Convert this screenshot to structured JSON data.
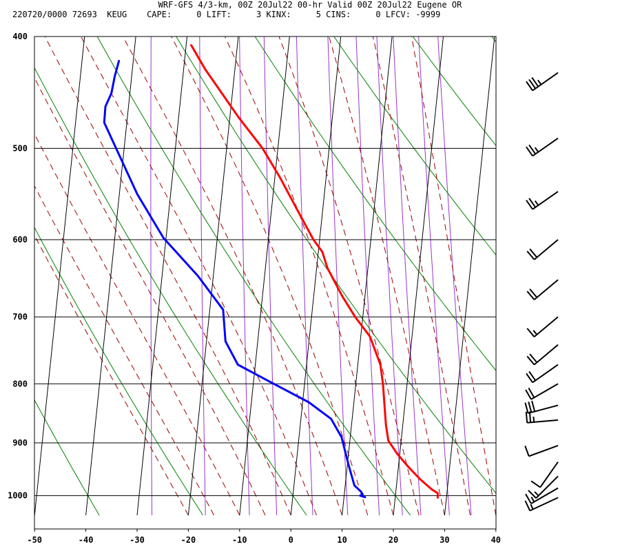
{
  "header": {
    "line1": "WRF-GFS 4/3-km, 00Z 20Jul22 00-hr Valid 00Z 20Jul22 Eugene OR",
    "line2": "220720/0000 72693  KEUG    CAPE:     0 LIFT:     3 KINX:     5 CINS:     0 LFCV: -9999"
  },
  "chart_data": {
    "type": "line",
    "title": "WRF-GFS 4/3-km, 00Z 20Jul22 00-hr Valid 00Z 20Jul22 Eugene OR",
    "xlabel": "",
    "ylabel": "",
    "xlim": [
      -50,
      40
    ],
    "ylim_pressure": [
      1040,
      400
    ],
    "y_scale": "log",
    "x_ticks": [
      "-50",
      "-40",
      "-30",
      "-20",
      "-10",
      "0",
      "10",
      "20",
      "30",
      "40"
    ],
    "y_ticks": [
      "400",
      "500",
      "600",
      "700",
      "800",
      "900",
      "1000"
    ],
    "series": [
      {
        "color": "#ff0000",
        "points": [
          [
            28.3,
            1004
          ],
          [
            28.2,
            995
          ],
          [
            27,
            988
          ],
          [
            24.5,
            968
          ],
          [
            22,
            945
          ],
          [
            19.5,
            920
          ],
          [
            17.5,
            896
          ],
          [
            16.7,
            868
          ],
          [
            15.3,
            800
          ],
          [
            14.4,
            770
          ],
          [
            11.8,
            728
          ],
          [
            8.5,
            700
          ],
          [
            5.5,
            671
          ],
          [
            2.1,
            635
          ],
          [
            0.8,
            615
          ],
          [
            -1.2,
            600
          ],
          [
            -5,
            565
          ],
          [
            -9,
            530
          ],
          [
            -13,
            500
          ],
          [
            -18.3,
            470
          ],
          [
            -25.8,
            427
          ],
          [
            -29,
            407
          ]
        ]
      },
      {
        "color": "#0000ff",
        "points": [
          [
            14.1,
            1003
          ],
          [
            13.1,
            1000
          ],
          [
            13.6,
            998
          ],
          [
            13.2,
            992
          ],
          [
            11.8,
            980
          ],
          [
            10.3,
            942
          ],
          [
            8.3,
            890
          ],
          [
            5.9,
            858
          ],
          [
            1.2,
            830
          ],
          [
            -6,
            800
          ],
          [
            -13.4,
            770
          ],
          [
            -16.3,
            735
          ],
          [
            -17.4,
            690
          ],
          [
            -23,
            645
          ],
          [
            -30.5,
            598
          ],
          [
            -36.5,
            548
          ],
          [
            -44.4,
            475
          ],
          [
            -44.5,
            460
          ],
          [
            -43.6,
            448
          ],
          [
            -43.3,
            433
          ],
          [
            -42.8,
            420
          ]
        ]
      }
    ],
    "wind_barbs": [
      {
        "p": 1004,
        "dir": 245,
        "spd": 15
      },
      {
        "p": 985,
        "dir": 240,
        "spd": 15
      },
      {
        "p": 962,
        "dir": 225,
        "spd": 15
      },
      {
        "p": 935,
        "dir": 215,
        "spd": 10
      },
      {
        "p": 905,
        "dir": 250,
        "spd": 10
      },
      {
        "p": 860,
        "dir": 265,
        "spd": 25
      },
      {
        "p": 835,
        "dir": 255,
        "spd": 30
      },
      {
        "p": 800,
        "dir": 240,
        "spd": 20
      },
      {
        "p": 770,
        "dir": 235,
        "spd": 20
      },
      {
        "p": 740,
        "dir": 230,
        "spd": 20
      },
      {
        "p": 700,
        "dir": 230,
        "spd": 15
      },
      {
        "p": 650,
        "dir": 230,
        "spd": 20
      },
      {
        "p": 600,
        "dir": 230,
        "spd": 20
      },
      {
        "p": 545,
        "dir": 235,
        "spd": 25
      },
      {
        "p": 490,
        "dir": 235,
        "spd": 25
      },
      {
        "p": 430,
        "dir": 235,
        "spd": 35
      }
    ],
    "grid": true,
    "background_lines": [
      "isotherms",
      "dry-adiabats",
      "moist-adiabats",
      "mixing-ratio"
    ],
    "colors": {
      "temperature": "#ff0000",
      "dewpoint": "#0000ff",
      "dry_adiabat": "#008000",
      "moist_adiabat": "#990000",
      "mixing_ratio": "#9933cc",
      "grid": "#000000"
    }
  }
}
